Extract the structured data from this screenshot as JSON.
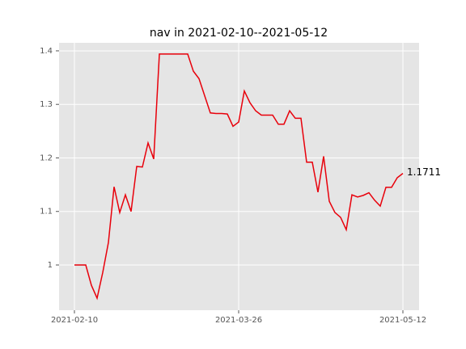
{
  "chart_data": {
    "type": "line",
    "title": "nav in 2021-02-10--2021-05-12",
    "categories": [
      "2021-02-10",
      null,
      null,
      null,
      null,
      null,
      null,
      null,
      null,
      null,
      null,
      null,
      null,
      null,
      null,
      null,
      null,
      null,
      null,
      null,
      null,
      null,
      null,
      null,
      null,
      null,
      null,
      null,
      null,
      "2021-03-26",
      null,
      null,
      null,
      null,
      null,
      null,
      null,
      null,
      null,
      null,
      null,
      null,
      null,
      null,
      null,
      null,
      null,
      null,
      null,
      null,
      null,
      null,
      null,
      null,
      null,
      null,
      null,
      null,
      "2021-05-12"
    ],
    "values": [
      1.0,
      1.0,
      1.0,
      0.962,
      0.938,
      0.986,
      1.042,
      1.146,
      1.098,
      1.131,
      1.1,
      1.184,
      1.183,
      1.228,
      1.198,
      1.394,
      1.394,
      1.394,
      1.394,
      1.394,
      1.394,
      1.362,
      1.348,
      1.316,
      1.284,
      1.283,
      1.283,
      1.282,
      1.259,
      1.267,
      1.325,
      1.303,
      1.288,
      1.28,
      1.28,
      1.28,
      1.263,
      1.263,
      1.288,
      1.274,
      1.274,
      1.192,
      1.192,
      1.136,
      1.203,
      1.119,
      1.098,
      1.089,
      1.066,
      1.131,
      1.127,
      1.13,
      1.135,
      1.121,
      1.11,
      1.145,
      1.145,
      1.163,
      1.1711
    ],
    "color": "#e8000b",
    "annotate_last": true,
    "ylim": [
      0.9155,
      1.415
    ],
    "yticks": [
      1.0,
      {
        "value": 1.1,
        "label": "1.1"
      },
      {
        "value": 1.2,
        "label": "1.2"
      },
      {
        "value": 1.3,
        "label": "1.3"
      },
      {
        "value": 1.4,
        "label": "1.4"
      }
    ],
    "grid": true
  }
}
